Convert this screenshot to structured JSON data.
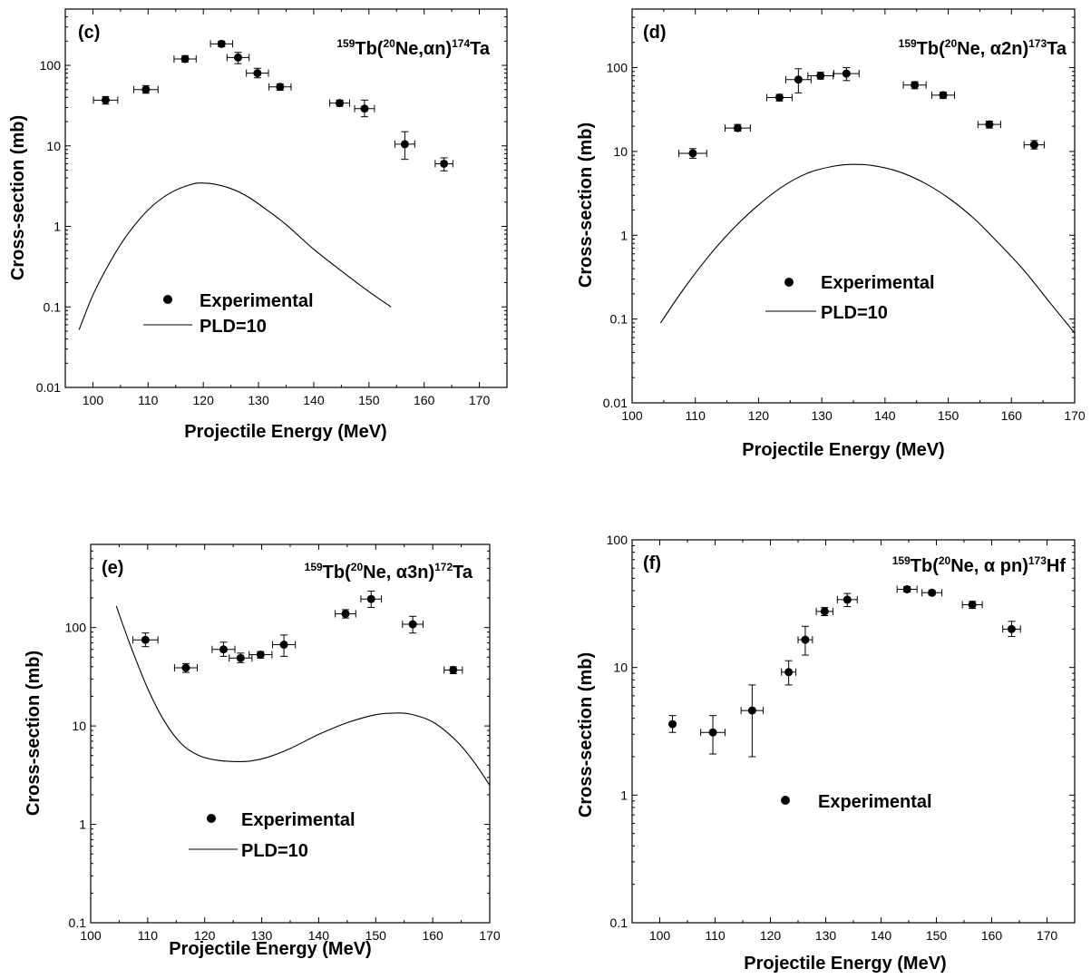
{
  "chart_data": [
    {
      "type": "scatter",
      "panel_label": "(c)",
      "title_parts": [
        {
          "text": "159",
          "sup": true
        },
        {
          "text": "Tb(",
          "sup": false
        },
        {
          "text": "20",
          "sup": true
        },
        {
          "text": "Ne,αn)",
          "sup": false
        },
        {
          "text": "174",
          "sup": true
        },
        {
          "text": "Ta",
          "sup": false
        }
      ],
      "xlabel": "Projectile Energy (MeV)",
      "ylabel": "Cross-section (mb)",
      "xlim": [
        95,
        175
      ],
      "ylim": [
        0.01,
        500
      ],
      "yscale": "log",
      "xticks": [
        100,
        110,
        120,
        130,
        140,
        150,
        160,
        170
      ],
      "xtick_labels": [
        "100",
        "110",
        "120",
        "130",
        "140",
        "150",
        "160",
        "170"
      ],
      "yticks": [
        0.01,
        0.1,
        1,
        10,
        100
      ],
      "ytick_labels": [
        "0.01",
        "0.1",
        "1",
        "10",
        "100"
      ],
      "series": [
        {
          "name": "Experimental",
          "kind": "points",
          "points": [
            {
              "x": 102.3,
              "y": 37,
              "xerr": 2.2,
              "ylo": 33,
              "yhi": 41
            },
            {
              "x": 109.6,
              "y": 50,
              "xerr": 2.2,
              "ylo": 45,
              "yhi": 56
            },
            {
              "x": 116.7,
              "y": 120,
              "xerr": 2.0,
              "ylo": 110,
              "yhi": 132
            },
            {
              "x": 123.3,
              "y": 185,
              "xerr": 2.0,
              "ylo": 170,
              "yhi": 200
            },
            {
              "x": 126.3,
              "y": 125,
              "xerr": 2.0,
              "ylo": 105,
              "yhi": 145
            },
            {
              "x": 129.8,
              "y": 80,
              "xerr": 2.0,
              "ylo": 70,
              "yhi": 92
            },
            {
              "x": 133.9,
              "y": 54,
              "xerr": 2.0,
              "ylo": 49,
              "yhi": 59
            },
            {
              "x": 144.7,
              "y": 34,
              "xerr": 1.8,
              "ylo": 31,
              "yhi": 37
            },
            {
              "x": 149.2,
              "y": 29,
              "xerr": 1.8,
              "ylo": 23,
              "yhi": 37
            },
            {
              "x": 156.5,
              "y": 10.5,
              "xerr": 1.8,
              "ylo": 6.8,
              "yhi": 15
            },
            {
              "x": 163.6,
              "y": 6,
              "xerr": 1.6,
              "ylo": 4.9,
              "yhi": 7.1
            }
          ]
        },
        {
          "name": "PLD=10",
          "kind": "line",
          "x": [
            97.5,
            100,
            103,
            106,
            110,
            114,
            118,
            120,
            122,
            125,
            128,
            131,
            135,
            140,
            145,
            150,
            154
          ],
          "y": [
            0.052,
            0.14,
            0.35,
            0.75,
            1.6,
            2.6,
            3.35,
            3.45,
            3.35,
            2.95,
            2.35,
            1.7,
            1.05,
            0.52,
            0.28,
            0.155,
            0.1
          ]
        }
      ],
      "legend": {
        "position": "lower-middle",
        "entries": [
          "Experimental",
          "PLD=10"
        ]
      }
    },
    {
      "type": "scatter",
      "panel_label": "(d)",
      "title_parts": [
        {
          "text": "159",
          "sup": true
        },
        {
          "text": "Tb(",
          "sup": false
        },
        {
          "text": "20",
          "sup": true
        },
        {
          "text": "Ne, α2n)",
          "sup": false
        },
        {
          "text": "173",
          "sup": true
        },
        {
          "text": "Ta",
          "sup": false
        }
      ],
      "xlabel": "Projectile Energy (MeV)",
      "ylabel": "Cross-section (mb)",
      "xlim": [
        100,
        170
      ],
      "ylim": [
        0.01,
        500
      ],
      "yscale": "log",
      "xticks": [
        100,
        110,
        120,
        130,
        140,
        150,
        160,
        170
      ],
      "xtick_labels": [
        "100",
        "110",
        "120",
        "130",
        "140",
        "150",
        "160",
        "170"
      ],
      "yticks": [
        0.01,
        0.1,
        1,
        10,
        100
      ],
      "ytick_labels": [
        "0.01",
        "0.1",
        "1",
        "10",
        "100"
      ],
      "series": [
        {
          "name": "Experimental",
          "kind": "points",
          "points": [
            {
              "x": 109.6,
              "y": 9.5,
              "xerr": 2.2,
              "ylo": 8.3,
              "yhi": 10.8
            },
            {
              "x": 116.7,
              "y": 19,
              "xerr": 2.0,
              "ylo": 17.5,
              "yhi": 21
            },
            {
              "x": 123.3,
              "y": 44,
              "xerr": 2.0,
              "ylo": 40,
              "yhi": 48
            },
            {
              "x": 126.3,
              "y": 72,
              "xerr": 2.0,
              "ylo": 50,
              "yhi": 97
            },
            {
              "x": 129.8,
              "y": 80,
              "xerr": 2.0,
              "ylo": 73,
              "yhi": 88
            },
            {
              "x": 133.9,
              "y": 85,
              "xerr": 2.0,
              "ylo": 70,
              "yhi": 100
            },
            {
              "x": 144.7,
              "y": 62,
              "xerr": 1.8,
              "ylo": 56,
              "yhi": 68
            },
            {
              "x": 149.2,
              "y": 47,
              "xerr": 1.8,
              "ylo": 43,
              "yhi": 51
            },
            {
              "x": 156.5,
              "y": 21,
              "xerr": 1.8,
              "ylo": 19,
              "yhi": 23
            },
            {
              "x": 163.6,
              "y": 12,
              "xerr": 1.6,
              "ylo": 10.7,
              "yhi": 13.5
            }
          ]
        },
        {
          "name": "PLD=10",
          "kind": "line",
          "x": [
            104.5,
            108,
            112,
            116,
            120,
            124,
            128,
            132,
            135,
            138,
            142,
            146,
            150,
            154,
            158,
            162,
            166,
            170
          ],
          "y": [
            0.09,
            0.22,
            0.55,
            1.2,
            2.3,
            3.9,
            5.6,
            6.7,
            7.0,
            6.8,
            5.8,
            4.3,
            2.8,
            1.6,
            0.8,
            0.38,
            0.16,
            0.068
          ]
        }
      ],
      "legend": {
        "position": "lower-middle",
        "entries": [
          "Experimental",
          "PLD=10"
        ]
      }
    },
    {
      "type": "scatter",
      "panel_label": "(e)",
      "title_parts": [
        {
          "text": "159",
          "sup": true
        },
        {
          "text": "Tb(",
          "sup": false
        },
        {
          "text": "20",
          "sup": true
        },
        {
          "text": "Ne, α3n)",
          "sup": false
        },
        {
          "text": "172",
          "sup": true
        },
        {
          "text": "Ta",
          "sup": false
        }
      ],
      "xlabel": "Projectile Energy (MeV)",
      "ylabel": "Cross-section (mb)",
      "xlim": [
        100,
        170
      ],
      "ylim": [
        0.1,
        700
      ],
      "yscale": "log",
      "xticks": [
        100,
        110,
        120,
        130,
        140,
        150,
        160,
        170
      ],
      "xtick_labels": [
        "100",
        "110",
        "120",
        "130",
        "140",
        "150",
        "160",
        "170"
      ],
      "yticks": [
        0.1,
        1,
        10,
        100
      ],
      "ytick_labels": [
        "0.1",
        "1",
        "10",
        "100"
      ],
      "series": [
        {
          "name": "Experimental",
          "kind": "points",
          "points": [
            {
              "x": 109.6,
              "y": 75,
              "xerr": 2.2,
              "ylo": 64,
              "yhi": 88
            },
            {
              "x": 116.7,
              "y": 39,
              "xerr": 2.0,
              "ylo": 35,
              "yhi": 43
            },
            {
              "x": 123.3,
              "y": 60,
              "xerr": 2.0,
              "ylo": 51,
              "yhi": 71
            },
            {
              "x": 126.3,
              "y": 49,
              "xerr": 2.0,
              "ylo": 44,
              "yhi": 55
            },
            {
              "x": 129.8,
              "y": 53,
              "xerr": 2.0,
              "ylo": 49,
              "yhi": 57
            },
            {
              "x": 133.9,
              "y": 67,
              "xerr": 2.0,
              "ylo": 51,
              "yhi": 84
            },
            {
              "x": 144.7,
              "y": 138,
              "xerr": 1.8,
              "ylo": 125,
              "yhi": 152
            },
            {
              "x": 149.2,
              "y": 195,
              "xerr": 1.8,
              "ylo": 160,
              "yhi": 235
            },
            {
              "x": 156.5,
              "y": 108,
              "xerr": 1.8,
              "ylo": 88,
              "yhi": 130
            },
            {
              "x": 163.6,
              "y": 37,
              "xerr": 1.6,
              "ylo": 34,
              "yhi": 40
            }
          ]
        },
        {
          "name": "PLD=10",
          "kind": "line",
          "x": [
            104.5,
            107,
            110,
            113,
            116,
            119,
            122,
            125,
            128,
            131,
            135,
            140,
            145,
            150,
            153,
            156,
            160,
            164,
            167,
            170
          ],
          "y": [
            165,
            65,
            24,
            11,
            6.5,
            5.0,
            4.5,
            4.35,
            4.4,
            4.8,
            5.9,
            8.2,
            10.8,
            13.0,
            13.5,
            13.2,
            11,
            7.2,
            4.5,
            2.5
          ]
        }
      ],
      "legend": {
        "position": "lower-middle",
        "entries": [
          "Experimental",
          "PLD=10"
        ]
      }
    },
    {
      "type": "scatter",
      "panel_label": "(f)",
      "title_parts": [
        {
          "text": "159",
          "sup": true
        },
        {
          "text": "Tb(",
          "sup": false
        },
        {
          "text": "20",
          "sup": true
        },
        {
          "text": "Ne, α pn)",
          "sup": false
        },
        {
          "text": "173",
          "sup": true
        },
        {
          "text": "Hf",
          "sup": false
        }
      ],
      "xlabel": "Projectile Energy (MeV)",
      "ylabel": "Cross-section (mb)",
      "xlim": [
        95,
        175
      ],
      "ylim": [
        0.1,
        100
      ],
      "yscale": "log",
      "xticks": [
        100,
        110,
        120,
        130,
        140,
        150,
        160,
        170
      ],
      "xtick_labels": [
        "100",
        "110",
        "120",
        "130",
        "140",
        "150",
        "160",
        "170"
      ],
      "yticks": [
        0.1,
        1,
        10,
        100
      ],
      "ytick_labels": [
        "0.1",
        "1",
        "10",
        "100"
      ],
      "series": [
        {
          "name": "Experimental",
          "kind": "points",
          "points": [
            {
              "x": 102.3,
              "y": 3.6,
              "xerr": 0,
              "ylo": 3.1,
              "yhi": 4.2
            },
            {
              "x": 109.6,
              "y": 3.1,
              "xerr": 2.2,
              "ylo": 2.1,
              "yhi": 4.2
            },
            {
              "x": 116.7,
              "y": 4.6,
              "xerr": 2.0,
              "ylo": 2.0,
              "yhi": 7.3
            },
            {
              "x": 123.3,
              "y": 9.2,
              "xerr": 1.3,
              "ylo": 7.3,
              "yhi": 11.3
            },
            {
              "x": 126.3,
              "y": 16.5,
              "xerr": 1.3,
              "ylo": 12.5,
              "yhi": 21
            },
            {
              "x": 129.8,
              "y": 27.5,
              "xerr": 1.5,
              "ylo": 25.5,
              "yhi": 29.5
            },
            {
              "x": 133.9,
              "y": 34,
              "xerr": 1.8,
              "ylo": 30,
              "yhi": 38
            },
            {
              "x": 144.7,
              "y": 41,
              "xerr": 1.8,
              "ylo": 39,
              "yhi": 43
            },
            {
              "x": 149.2,
              "y": 38.5,
              "xerr": 1.8,
              "ylo": 37,
              "yhi": 40
            },
            {
              "x": 156.5,
              "y": 31,
              "xerr": 1.8,
              "ylo": 29,
              "yhi": 33
            },
            {
              "x": 163.6,
              "y": 20,
              "xerr": 1.6,
              "ylo": 17.5,
              "yhi": 23
            }
          ]
        }
      ],
      "legend": {
        "position": "lower-middle",
        "entries": [
          "Experimental"
        ]
      }
    }
  ]
}
